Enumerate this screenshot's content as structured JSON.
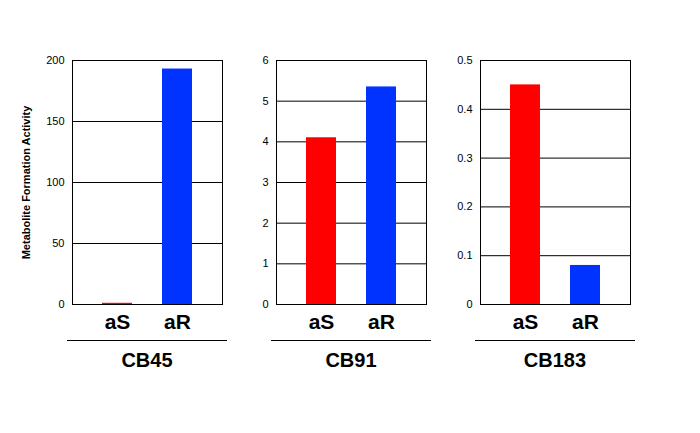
{
  "chart_data": [
    {
      "type": "bar",
      "title": "CB45",
      "ylabel": "Metabolite Formation Activity",
      "categories": [
        "aS",
        "aR"
      ],
      "values": [
        1,
        193
      ],
      "colors": [
        "#ff0000",
        "#0033ff"
      ],
      "ylim": [
        0,
        200
      ],
      "yticks": [
        0,
        50,
        100,
        150,
        200
      ],
      "grid": true
    },
    {
      "type": "bar",
      "title": "CB91",
      "categories": [
        "aS",
        "aR"
      ],
      "values": [
        4.1,
        5.35
      ],
      "colors": [
        "#ff0000",
        "#0033ff"
      ],
      "ylim": [
        0,
        6
      ],
      "yticks": [
        0,
        1,
        2,
        3,
        4,
        5,
        6
      ],
      "grid": true
    },
    {
      "type": "bar",
      "title": "CB183",
      "categories": [
        "aS",
        "aR"
      ],
      "values": [
        0.45,
        0.08
      ],
      "colors": [
        "#ff0000",
        "#0033ff"
      ],
      "ylim": [
        0,
        0.5
      ],
      "yticks": [
        0,
        0.1,
        0.2,
        0.3,
        0.4,
        0.5
      ],
      "grid": true
    }
  ]
}
